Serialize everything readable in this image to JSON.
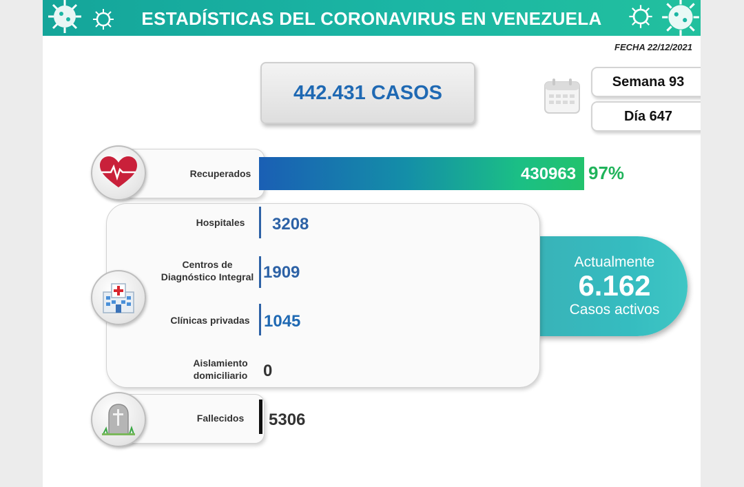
{
  "header": {
    "title": "ESTADÍSTICAS DEL CORONAVIRUS EN VENEZUELA"
  },
  "fecha": "FECHA 22/12/2021",
  "total": "442.431 CASOS",
  "semana": "Semana 93",
  "dia": "Día 647",
  "active": {
    "line1": "Actualmente",
    "count": "6.162",
    "line3": "Casos activos"
  },
  "labels": {
    "recuperados": "Recuperados",
    "hospitales": "Hospitales",
    "cdi_1": "Centros de",
    "cdi_2": "Diagnóstico Integral",
    "clinicas": "Clínicas privadas",
    "aislamiento_1": "Aislamiento",
    "aislamiento_2": "domiciliario",
    "fallecidos": "Fallecidos"
  },
  "values": {
    "recuperados": "430963",
    "recuperados_pct": "97%",
    "hospitales": "3208",
    "cdi": "1909",
    "clinicas": "1045",
    "aislamiento": "0",
    "fallecidos": "5306"
  },
  "colors": {
    "header": "#1bb6a4",
    "total_text": "#1f69b3",
    "pct": "#1fb35a",
    "active_box": "#39b3b8",
    "bar_blue": "#2d62a6"
  },
  "icons": {
    "recuperados": "heart-pulse-icon",
    "hospitalizados": "hospital-icon",
    "fallecidos": "tombstone-icon",
    "calendar": "calendar-icon"
  },
  "chart_data": {
    "type": "bar",
    "categories": [
      "Recuperados",
      "Hospitales",
      "Centros de Diagnóstico Integral",
      "Clínicas privadas",
      "Aislamiento domiciliario",
      "Fallecidos"
    ],
    "values": [
      430963,
      3208,
      1909,
      1045,
      0,
      5306
    ],
    "total_cases": 442431,
    "active_cases": 6162,
    "recovered_pct": 97
  }
}
